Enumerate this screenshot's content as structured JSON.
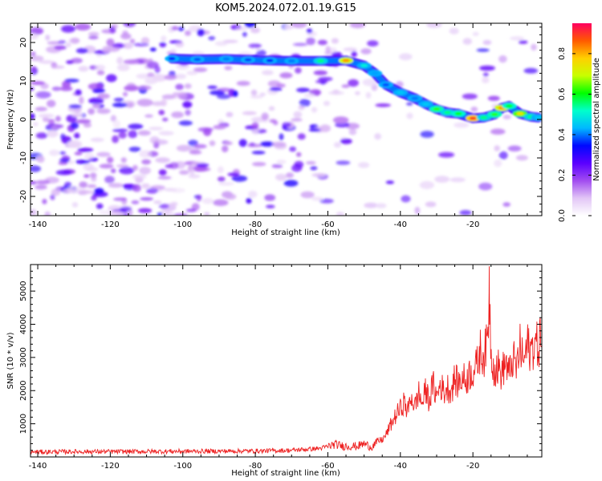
{
  "title": "KOM5.2024.072.01.19.G15",
  "chart_data": [
    {
      "type": "heatmap",
      "xlabel": "Height of straight line (km)",
      "ylabel": "Frequency (Hz)",
      "xlim": [
        -142,
        -1
      ],
      "ylim": [
        -25,
        25
      ],
      "xticks": [
        -140,
        -120,
        -100,
        -80,
        -60,
        -40,
        -20
      ],
      "yticks": [
        -20,
        -10,
        0,
        10,
        20
      ],
      "colorbar": {
        "label": "Normalized spectral amplitude",
        "range": [
          0,
          0.95
        ],
        "ticks": [
          0.0,
          0.2,
          0.4,
          0.6,
          0.8
        ],
        "colormap": [
          "#ffffff",
          "#e2c6f6",
          "#a24cf0",
          "#5a00ff",
          "#0008ff",
          "#00b8ff",
          "#00ffcc",
          "#00ff00",
          "#c8ff00",
          "#ffd000",
          "#ff5a00",
          "#ff0060"
        ]
      },
      "ridge": {
        "x": [
          -103,
          -96,
          -88,
          -82,
          -76,
          -70,
          -62,
          -55,
          -50,
          -47,
          -44,
          -40,
          -36,
          -33,
          -30,
          -27,
          -24,
          -20,
          -17,
          -14,
          -12,
          -10,
          -7,
          -4,
          -2
        ],
        "y": [
          15.8,
          15.6,
          15.7,
          15.5,
          15.3,
          15.2,
          15.2,
          15.3,
          14.0,
          12.0,
          9.0,
          7.0,
          5.5,
          4.0,
          2.7,
          1.8,
          1.5,
          0.3,
          0.5,
          1.3,
          3.0,
          3.5,
          1.5,
          0.7,
          0.5
        ],
        "amp": [
          0.35,
          0.38,
          0.4,
          0.37,
          0.35,
          0.4,
          0.55,
          0.82,
          0.5,
          0.42,
          0.38,
          0.45,
          0.4,
          0.45,
          0.62,
          0.55,
          0.6,
          0.9,
          0.55,
          0.62,
          0.82,
          0.6,
          0.75,
          0.55,
          0.45
        ]
      }
    },
    {
      "type": "line",
      "xlabel": "Height of straight line (km)",
      "ylabel": "SNR (10 * v/v)",
      "xlim": [
        -142,
        -1
      ],
      "ylim": [
        0,
        5800
      ],
      "xticks": [
        -140,
        -120,
        -100,
        -80,
        -60,
        -40,
        -20
      ],
      "yticks": [
        1000,
        2000,
        3000,
        4000,
        5000
      ],
      "color": "#ee2222",
      "series": [
        {
          "x": [
            -142,
            -130,
            -120,
            -110,
            -100,
            -90,
            -80,
            -70,
            -62,
            -58,
            -56,
            -52,
            -50,
            -48,
            -46,
            -45,
            -44,
            -43,
            -42,
            -41,
            -40,
            -39,
            -38,
            -37,
            -36,
            -35,
            -34,
            -33,
            -32,
            -31,
            -30,
            -29,
            -28,
            -27,
            -26,
            -25,
            -24,
            -23,
            -22,
            -21,
            -20,
            -19,
            -18,
            -17,
            -16,
            -15.5,
            -15,
            -14,
            -13,
            -12,
            -11,
            -10,
            -9,
            -8,
            -7,
            -6,
            -5,
            -4,
            -3,
            -2,
            -1
          ],
          "y": [
            150,
            160,
            160,
            165,
            170,
            175,
            180,
            200,
            260,
            380,
            330,
            320,
            400,
            300,
            480,
            520,
            650,
            900,
            1100,
            1300,
            1450,
            1650,
            1350,
            1850,
            1500,
            1950,
            1600,
            2000,
            1700,
            2200,
            1800,
            2200,
            1950,
            2100,
            2000,
            2350,
            2200,
            2400,
            2300,
            2500,
            2600,
            2700,
            3200,
            3050,
            3400,
            5000,
            3200,
            2600,
            2700,
            2500,
            2900,
            2450,
            3000,
            2650,
            3300,
            2850,
            3350,
            3200,
            3450,
            3300,
            3850
          ]
        }
      ]
    }
  ]
}
